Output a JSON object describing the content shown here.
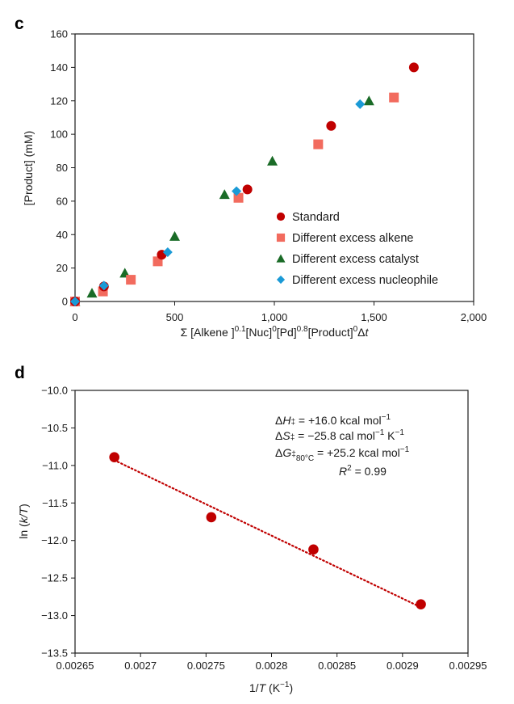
{
  "chart_data": [
    {
      "panel": "c",
      "type": "scatter",
      "xlabel": {
        "prefix": "Σ [Alkene ]",
        "parts": [
          {
            "base": "Σ [Alkene ]",
            "sup": "0.1"
          },
          {
            "base": "[Nuc]",
            "sup": "0"
          },
          {
            "base": "[Pd]",
            "sup": "0.8"
          },
          {
            "base": "[Product]",
            "sup": "0"
          },
          {
            "base": "Δ",
            "italic": "t"
          }
        ]
      },
      "ylabel": "[Product] (mM)",
      "xlim": [
        0,
        2000
      ],
      "ylim": [
        0,
        160
      ],
      "xticks": [
        0,
        500,
        1000,
        1500,
        2000
      ],
      "xtick_labels": [
        "0",
        "500",
        "1,000",
        "1,500",
        "2,000"
      ],
      "yticks": [
        0,
        20,
        40,
        60,
        80,
        100,
        120,
        140,
        160
      ],
      "ytick_labels": [
        "0",
        "20",
        "40",
        "60",
        "80",
        "100",
        "120",
        "140",
        "160"
      ],
      "grid": false,
      "legend_position": "bottom-right",
      "series": [
        {
          "name": "Standard",
          "marker": "circle",
          "color": "#c00000",
          "x": [
            0,
            145,
            435,
            865,
            1285,
            1700
          ],
          "y": [
            0,
            9,
            28,
            67,
            105,
            140
          ]
        },
        {
          "name": "Different excess alkene",
          "marker": "square",
          "color": "#f26b5e",
          "x": [
            0,
            140,
            280,
            415,
            820,
            1220,
            1600
          ],
          "y": [
            0,
            6,
            13,
            24,
            62,
            94,
            122
          ]
        },
        {
          "name": "Different excess catalyst",
          "marker": "triangle",
          "color": "#1a6b27",
          "x": [
            0,
            85,
            250,
            500,
            750,
            990,
            1475
          ],
          "y": [
            0,
            5,
            17,
            39,
            64,
            84,
            120
          ]
        },
        {
          "name": "Different excess nucleophile",
          "marker": "diamond",
          "color": "#1b9ad6",
          "x": [
            0,
            145,
            465,
            810,
            1430
          ],
          "y": [
            0,
            9.5,
            29.5,
            66,
            118
          ]
        }
      ]
    },
    {
      "panel": "d",
      "type": "scatter",
      "xlabel": {
        "italic": "T",
        "before": "1/",
        "after": " (K",
        "sup": "−1",
        "close": ")"
      },
      "ylabel": {
        "before": "ln (",
        "italic": "k/T",
        "after": ")"
      },
      "xlim": [
        0.00265,
        0.00295
      ],
      "ylim": [
        -13.5,
        -10.0
      ],
      "xticks": [
        0.00265,
        0.0027,
        0.00275,
        0.0028,
        0.00285,
        0.0029,
        0.00295
      ],
      "xtick_labels": [
        "0.00265",
        "0.0027",
        "0.00275",
        "0.0028",
        "0.00285",
        "0.0029",
        "0.00295"
      ],
      "yticks": [
        -10.0,
        -10.5,
        -11.0,
        -11.5,
        -12.0,
        -12.5,
        -13.0,
        -13.5
      ],
      "ytick_labels": [
        "−10.0",
        "−10.5",
        "−11.0",
        "−11.5",
        "−12.0",
        "−12.5",
        "−13.0",
        "−13.5"
      ],
      "grid": false,
      "series": [
        {
          "name": "data",
          "marker": "circle",
          "color": "#c00000",
          "x": [
            0.00268,
            0.002754,
            0.002832,
            0.002914
          ],
          "y": [
            -10.89,
            -11.69,
            -12.12,
            -12.85
          ]
        }
      ],
      "fit": {
        "style": "dotted",
        "color": "#c00000",
        "x": [
          0.00268,
          0.002914
        ],
        "y": [
          -10.93,
          -12.89
        ]
      },
      "annotations": [
        {
          "id": "dH",
          "delta": "Δ",
          "sym": "H",
          "dagger": "‡",
          "text": " = +16.0 kcal mol",
          "sup": "−1",
          "tail": ""
        },
        {
          "id": "dS",
          "delta": "Δ",
          "sym": "S",
          "dagger": "‡",
          "text": " = −25.8 cal mol",
          "sup": "−1",
          "tail": " K",
          "sup2": "−1"
        },
        {
          "id": "dG",
          "delta": "Δ",
          "sym": "G",
          "dagger": "‡",
          "sub": "80°C",
          "text": " = +25.2 kcal mol",
          "sup": "−1"
        },
        {
          "id": "r2",
          "sym": "R",
          "sup": "2",
          "text": " = 0.99"
        }
      ]
    }
  ],
  "panels": {
    "c": "c",
    "d": "d"
  }
}
